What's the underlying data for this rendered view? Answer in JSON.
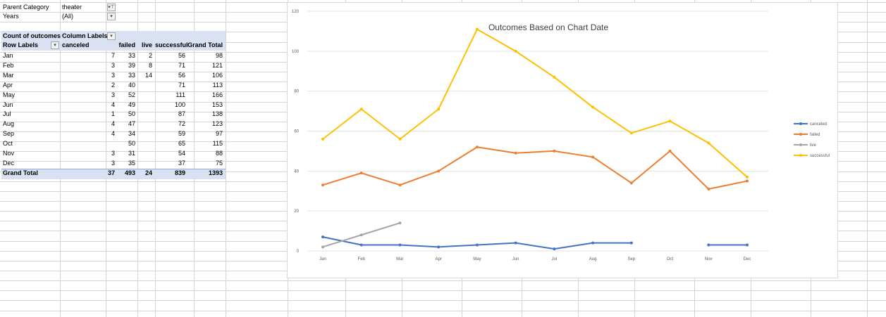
{
  "pivot": {
    "filters": [
      {
        "label": "Parent Category",
        "value": "theater",
        "filtered": true
      },
      {
        "label": "Years",
        "value": "(All)",
        "filtered": false
      }
    ],
    "header": {
      "values_label": "Count of outcomes",
      "column_labels": "Column Labels",
      "row_labels": "Row Labels",
      "columns": [
        "canceled",
        "failed",
        "live",
        "successful",
        "Grand Total"
      ]
    },
    "rows": [
      {
        "month": "Jan",
        "canceled": "7",
        "failed": "33",
        "live": "2",
        "successful": "56",
        "total": "98"
      },
      {
        "month": "Feb",
        "canceled": "3",
        "failed": "39",
        "live": "8",
        "successful": "71",
        "total": "121"
      },
      {
        "month": "Mar",
        "canceled": "3",
        "failed": "33",
        "live": "14",
        "successful": "56",
        "total": "106"
      },
      {
        "month": "Apr",
        "canceled": "2",
        "failed": "40",
        "live": "",
        "successful": "71",
        "total": "113"
      },
      {
        "month": "May",
        "canceled": "3",
        "failed": "52",
        "live": "",
        "successful": "111",
        "total": "166"
      },
      {
        "month": "Jun",
        "canceled": "4",
        "failed": "49",
        "live": "",
        "successful": "100",
        "total": "153"
      },
      {
        "month": "Jul",
        "canceled": "1",
        "failed": "50",
        "live": "",
        "successful": "87",
        "total": "138"
      },
      {
        "month": "Aug",
        "canceled": "4",
        "failed": "47",
        "live": "",
        "successful": "72",
        "total": "123"
      },
      {
        "month": "Sep",
        "canceled": "4",
        "failed": "34",
        "live": "",
        "successful": "59",
        "total": "97"
      },
      {
        "month": "Oct",
        "canceled": "",
        "failed": "50",
        "live": "",
        "successful": "65",
        "total": "115"
      },
      {
        "month": "Nov",
        "canceled": "3",
        "failed": "31",
        "live": "",
        "successful": "54",
        "total": "88"
      },
      {
        "month": "Dec",
        "canceled": "3",
        "failed": "35",
        "live": "",
        "successful": "37",
        "total": "75"
      }
    ],
    "grand_total": {
      "label": "Grand Total",
      "canceled": "37",
      "failed": "493",
      "live": "24",
      "successful": "839",
      "total": "1393"
    }
  },
  "chart_data": {
    "type": "line",
    "title": "Outcomes Based on Chart Date",
    "categories": [
      "Jan",
      "Feb",
      "Mar",
      "Apr",
      "May",
      "Jun",
      "Jul",
      "Aug",
      "Sep",
      "Oct",
      "Nov",
      "Dec"
    ],
    "ylim": [
      0,
      120
    ],
    "yticks": [
      0,
      20,
      40,
      60,
      80,
      100,
      120
    ],
    "grid": true,
    "legend": "right",
    "series": [
      {
        "name": "canceled",
        "color": "#4472c4",
        "values": [
          7,
          3,
          3,
          2,
          3,
          4,
          1,
          4,
          4,
          null,
          3,
          3
        ]
      },
      {
        "name": "failed",
        "color": "#ed7d31",
        "values": [
          33,
          39,
          33,
          40,
          52,
          49,
          50,
          47,
          34,
          50,
          31,
          35
        ]
      },
      {
        "name": "live",
        "color": "#a5a5a5",
        "values": [
          2,
          8,
          14,
          null,
          null,
          null,
          null,
          null,
          null,
          null,
          null,
          null
        ]
      },
      {
        "name": "successful",
        "color": "#ffc000",
        "values": [
          56,
          71,
          56,
          71,
          111,
          100,
          87,
          72,
          59,
          65,
          54,
          37
        ]
      }
    ]
  }
}
